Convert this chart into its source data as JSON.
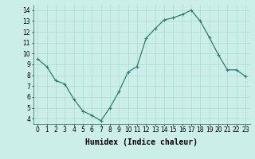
{
  "x": [
    0,
    1,
    2,
    3,
    4,
    5,
    6,
    7,
    8,
    9,
    10,
    11,
    12,
    13,
    14,
    15,
    16,
    17,
    18,
    19,
    20,
    21,
    22,
    23
  ],
  "y": [
    9.5,
    8.8,
    7.5,
    7.2,
    5.8,
    4.7,
    4.3,
    3.8,
    5.0,
    6.5,
    8.3,
    8.8,
    11.4,
    12.3,
    13.1,
    13.3,
    13.6,
    14.0,
    13.0,
    11.5,
    9.9,
    8.5,
    8.5,
    7.9
  ],
  "line_color": "#2e7d6e",
  "marker": "+",
  "marker_size": 3,
  "marker_lw": 0.8,
  "line_width": 0.9,
  "bg_color": "#cceee8",
  "grid_color": "#aaddcc",
  "xlabel": "Humidex (Indice chaleur)",
  "ylim": [
    3.5,
    14.5
  ],
  "xlim": [
    -0.5,
    23.5
  ],
  "yticks": [
    4,
    5,
    6,
    7,
    8,
    9,
    10,
    11,
    12,
    13,
    14
  ],
  "xticks": [
    0,
    1,
    2,
    3,
    4,
    5,
    6,
    7,
    8,
    9,
    10,
    11,
    12,
    13,
    14,
    15,
    16,
    17,
    18,
    19,
    20,
    21,
    22,
    23
  ],
  "xtick_labels": [
    "0",
    "1",
    "2",
    "3",
    "4",
    "5",
    "6",
    "7",
    "8",
    "9",
    "10",
    "11",
    "12",
    "13",
    "14",
    "15",
    "16",
    "17",
    "18",
    "19",
    "20",
    "21",
    "22",
    "23"
  ],
  "tick_fontsize": 5.5,
  "xlabel_fontsize": 7
}
